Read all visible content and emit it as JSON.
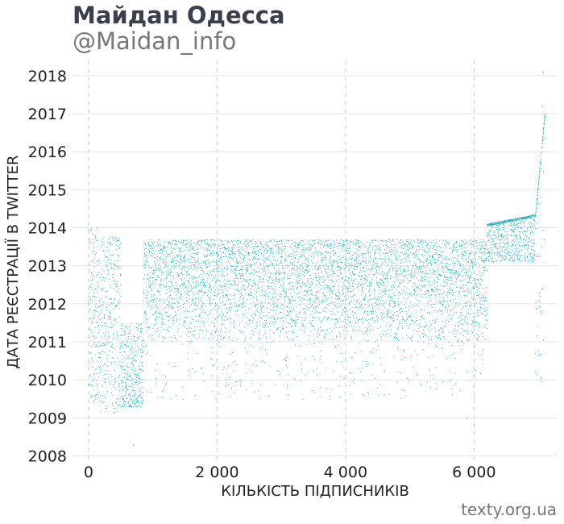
{
  "header": {
    "title": "Майдан Одесса",
    "subtitle": "@Maidan_info"
  },
  "footer": {
    "credit": "texty.org.ua"
  },
  "colors": {
    "points": "#1bb1c4",
    "gridline": "#e4e4e4",
    "vertical_gridline": "#cccccc",
    "text": "#222222"
  },
  "chart_data": {
    "type": "scatter",
    "xlabel": "КІЛЬКІСТЬ ПІДПИСНИКІВ",
    "ylabel": "ДАТА РЕЄСТРАЦІЇ В TWITTER",
    "xlim": [
      -250,
      7300
    ],
    "ylim": [
      2007.8,
      2018.4
    ],
    "x_ticks": [
      0,
      2000,
      4000,
      6000
    ],
    "x_tick_labels": [
      "0",
      "2 000",
      "4 000",
      "6 000"
    ],
    "y_ticks": [
      2008,
      2009,
      2010,
      2011,
      2012,
      2013,
      2014,
      2015,
      2016,
      2017,
      2018
    ],
    "y_tick_labels": [
      "2008",
      "2009",
      "2010",
      "2011",
      "2012",
      "2013",
      "2014",
      "2015",
      "2016",
      "2017",
      "2018"
    ],
    "grid": "horizontal solid, vertical dashed",
    "legend": "none",
    "point_count": 7100,
    "point_x_range": [
      0,
      7100
    ],
    "segments": [
      {
        "x": [
          0,
          150
        ],
        "y_range": [
          2009.3,
          2014.0
        ]
      },
      {
        "x": [
          150,
          500
        ],
        "y_range": [
          2009.1,
          2013.8
        ]
      },
      {
        "x": [
          500,
          850
        ],
        "y_range": [
          2009.3,
          2011.5
        ]
      },
      {
        "x": [
          850,
          6200
        ],
        "y_range": [
          2009.5,
          2013.7
        ]
      },
      {
        "x": [
          6200,
          6950
        ],
        "y_range": [
          2013.2,
          2014.3
        ]
      },
      {
        "x": [
          6950,
          7060
        ],
        "y_range": [
          2014.3,
          2016.3
        ]
      }
    ],
    "outliers": [
      {
        "x": 7050,
        "y": 2017.2
      },
      {
        "x": 7070,
        "y": 2018.1
      },
      {
        "x": 690,
        "y": 2008.3
      },
      {
        "x": 5880,
        "y": 2009.0
      }
    ]
  }
}
